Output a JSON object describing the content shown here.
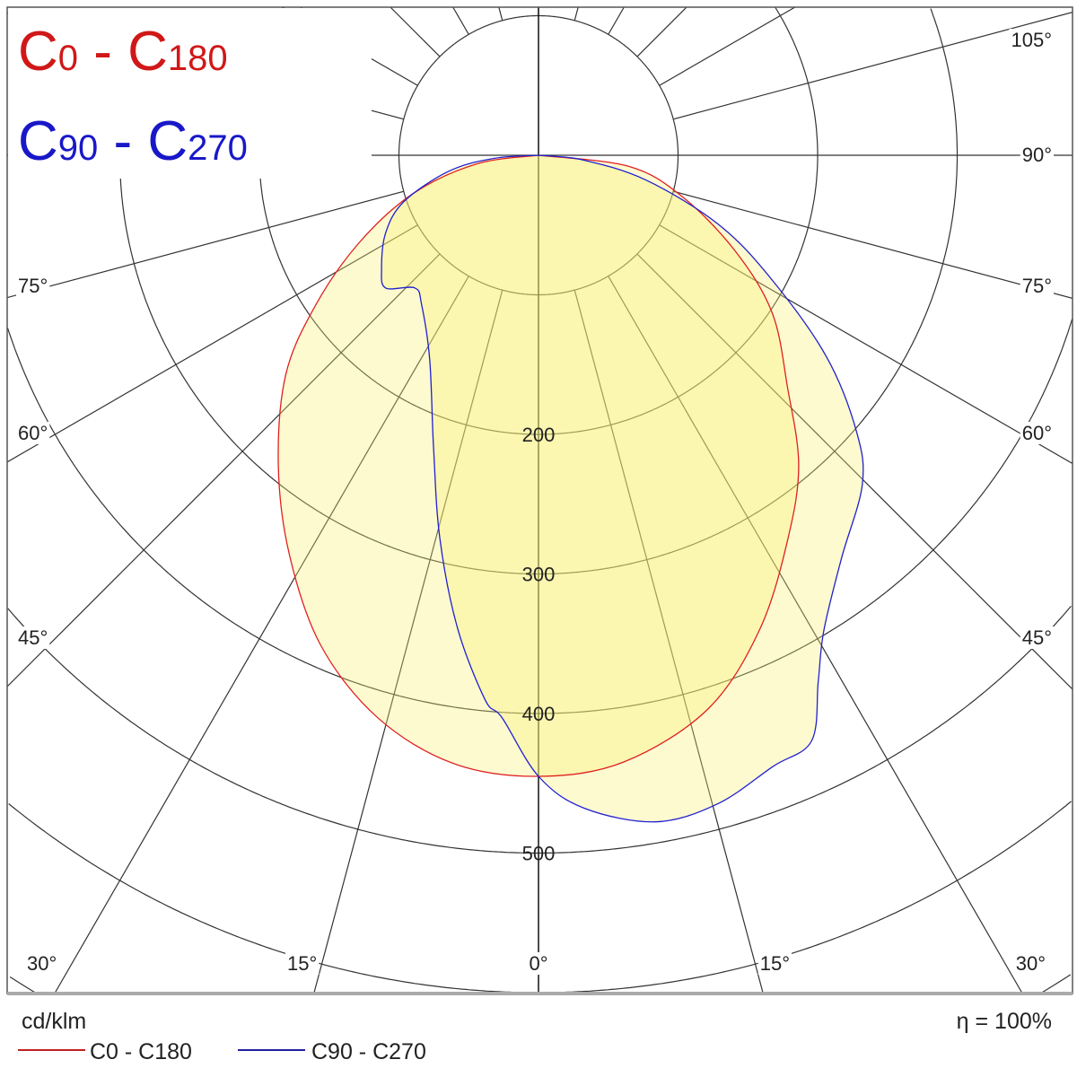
{
  "chart_data": {
    "type": "polar",
    "unit": "cd/klm",
    "efficiency": "η = 100%",
    "radial_ticks": [
      100,
      200,
      300,
      400,
      500,
      600,
      700,
      800
    ],
    "radial_tick_labels": [
      "200",
      "300",
      "400",
      "500"
    ],
    "angle_labels": {
      "right": [
        "105°",
        "90°",
        "75°",
        "60°",
        "45°",
        "30°",
        "15°"
      ],
      "bottom": "0°",
      "left": [
        "15°",
        "30°",
        "45°",
        "60°",
        "75°"
      ]
    },
    "title": {
      "red": {
        "c1": "C",
        "s1": "0",
        "dash": " - ",
        "c2": "C",
        "s2": "180"
      },
      "blue": {
        "c1": "C",
        "s1": "90",
        "dash": " - ",
        "c2": "C",
        "s2": "270"
      }
    },
    "series": [
      {
        "name": "C0 - C180",
        "color": "#e02020",
        "C0": [
          [
            0,
            445
          ],
          [
            8,
            439
          ],
          [
            17,
            415
          ],
          [
            25,
            375
          ],
          [
            33,
            328
          ],
          [
            40,
            290
          ],
          [
            47,
            244
          ],
          [
            56,
            202
          ],
          [
            64,
            157
          ],
          [
            74,
            107
          ],
          [
            83,
            65
          ],
          [
            90,
            0
          ]
        ],
        "C180": [
          [
            0,
            445
          ],
          [
            8,
            440
          ],
          [
            16,
            419
          ],
          [
            24,
            384
          ],
          [
            32,
            337
          ],
          [
            40,
            290
          ],
          [
            49,
            240
          ],
          [
            56,
            193
          ],
          [
            64,
            143
          ],
          [
            73,
            94
          ],
          [
            82,
            45
          ],
          [
            90,
            0
          ]
        ]
      },
      {
        "name": "C90 - C270",
        "color": "#2020d0",
        "C90": [
          [
            0,
            445
          ],
          [
            4,
            469
          ],
          [
            10,
            485
          ],
          [
            15.5,
            482
          ],
          [
            21,
            469
          ],
          [
            25,
            463
          ],
          [
            28,
            427
          ],
          [
            31,
            397
          ],
          [
            37,
            361
          ],
          [
            44.5,
            331
          ],
          [
            49,
            302
          ],
          [
            55,
            252
          ],
          [
            62,
            189
          ],
          [
            69,
            138
          ],
          [
            77,
            79
          ],
          [
            84,
            32
          ],
          [
            90,
            0
          ]
        ],
        "C270": [
          [
            0,
            445
          ],
          [
            3.7,
            404
          ],
          [
            5.6,
            392
          ],
          [
            9.7,
            344
          ],
          [
            14.4,
            284
          ],
          [
            19.7,
            223
          ],
          [
            28,
            166
          ],
          [
            38,
            136
          ],
          [
            43,
            130
          ],
          [
            49,
            145
          ],
          [
            54,
            139
          ],
          [
            63,
            123
          ],
          [
            71,
            102
          ],
          [
            80,
            65
          ],
          [
            86,
            32
          ],
          [
            90,
            0
          ]
        ]
      }
    ],
    "fill_color": "#f8ef70",
    "grid": true
  },
  "legend": {
    "unit": "cd/klm",
    "items": [
      "C0 - C180",
      "C90 - C270"
    ],
    "efficiency": "η = 100%"
  }
}
